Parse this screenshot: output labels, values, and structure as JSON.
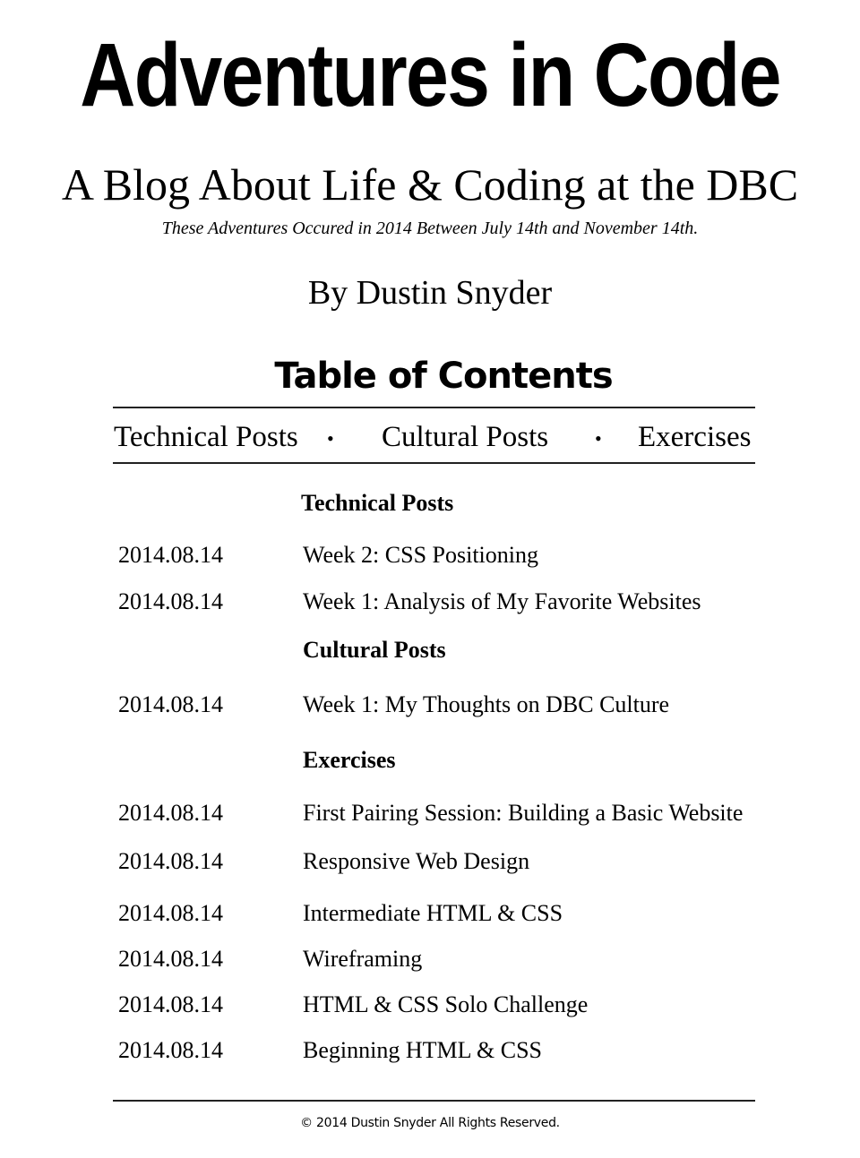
{
  "header": {
    "title": "Adventures in Code",
    "subtitle": "A Blog About Life & Coding at the DBC",
    "dates_note": "These Adventures Occured in 2014 Between July 14th and November 14th.",
    "byline": "By Dustin Snyder"
  },
  "toc": {
    "title": "Table of Contents",
    "nav": [
      {
        "label": "Technical Posts"
      },
      {
        "label": "Cultural Posts"
      },
      {
        "label": "Exercises"
      }
    ],
    "bullet": "•"
  },
  "sections": {
    "technical": {
      "heading": "Technical Posts",
      "entries": [
        {
          "date": "2014.08.14",
          "title": "Week 2: CSS Positioning"
        },
        {
          "date": "2014.08.14",
          "title": "Week 1: Analysis of My Favorite Websites"
        }
      ]
    },
    "cultural": {
      "heading": "Cultural Posts",
      "entries": [
        {
          "date": "2014.08.14",
          "title": "Week 1: My Thoughts on DBC Culture"
        }
      ]
    },
    "exercises": {
      "heading": "Exercises",
      "entries": [
        {
          "date": "2014.08.14",
          "title": "First Pairing Session: Building a Basic Website"
        },
        {
          "date": "2014.08.14",
          "title": "Responsive Web Design"
        },
        {
          "date": "2014.08.14",
          "title": "Intermediate HTML & CSS"
        },
        {
          "date": "2014.08.14",
          "title": "Wireframing"
        },
        {
          "date": "2014.08.14",
          "title": "HTML & CSS Solo Challenge"
        },
        {
          "date": "2014.08.14",
          "title": "Beginning HTML & CSS"
        }
      ]
    }
  },
  "footer": {
    "copyright": "© 2014 Dustin Snyder All Rights Reserved."
  }
}
